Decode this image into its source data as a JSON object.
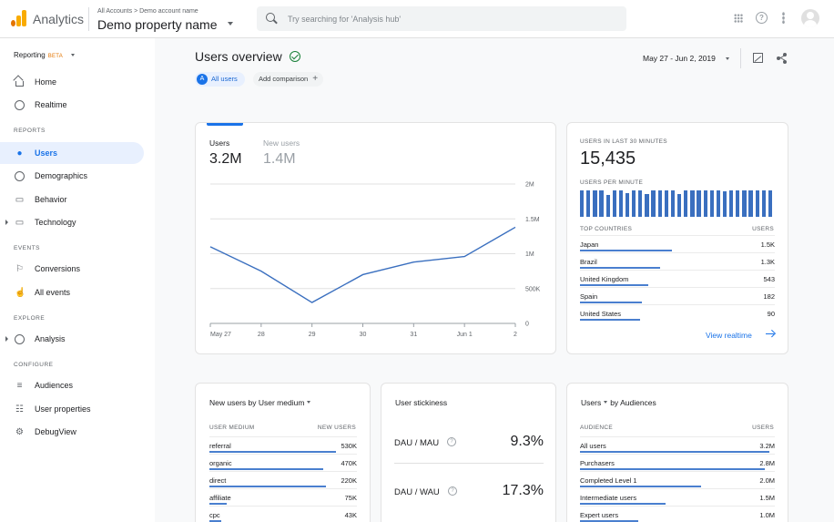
{
  "app": {
    "name": "Analytics",
    "breadcrumb": "All Accounts > Demo account name",
    "property": "Demo property name"
  },
  "search": {
    "placeholder": "Try searching for 'Analysis hub'"
  },
  "sidebar": {
    "reporting": "Reporting",
    "beta": "BETA",
    "sections": {
      "reports": "REPORTS",
      "events": "EVENTS",
      "explore": "EXPLORE",
      "configure": "CONFIGURE"
    },
    "items": {
      "home": "Home",
      "realtime": "Realtime",
      "users": "Users",
      "demographics": "Demographics",
      "behavior": "Behavior",
      "technology": "Technology",
      "conversions": "Conversions",
      "all_events": "All events",
      "analysis": "Analysis",
      "audiences": "Audiences",
      "user_properties": "User properties",
      "debugview": "DebugView"
    }
  },
  "header": {
    "title": "Users overview",
    "chip_avatar": "A",
    "chip_all": "All users",
    "chip_add": "Add comparison",
    "date_range": "May 27 - Jun 2, 2019"
  },
  "main_card": {
    "tab1_label": "Users",
    "tab1_value": "3.2M",
    "tab2_label": "New users",
    "tab2_value": "1.4M"
  },
  "chart_data": {
    "type": "line",
    "categories": [
      "May 27",
      "28",
      "29",
      "30",
      "31",
      "Jun 1",
      "2"
    ],
    "series": [
      {
        "values": [
          1100000,
          750000,
          300000,
          700000,
          880000,
          960000,
          1380000
        ]
      }
    ],
    "y_ticks": [
      "0",
      "500K",
      "1M",
      "1.5M",
      "2M"
    ],
    "ylim": [
      0,
      2000000
    ],
    "color": "#3a6fbf",
    "grid": true
  },
  "realtime": {
    "heading": "USERS IN LAST 30 MINUTES",
    "value": "15,435",
    "per_minute": "USERS PER MINUTE",
    "bars": [
      27,
      27,
      27,
      27,
      22,
      27,
      27,
      24,
      27,
      27,
      23,
      27,
      27,
      27,
      27,
      23,
      27,
      27,
      27,
      27,
      27,
      27,
      26,
      27,
      27,
      27,
      27,
      27,
      27,
      27
    ],
    "col_country": "TOP COUNTRIES",
    "col_users": "USERS",
    "rows": [
      {
        "name": "Japan",
        "value": "1.5K",
        "frac": 0.47
      },
      {
        "name": "Brazil",
        "value": "1.3K",
        "frac": 0.41
      },
      {
        "name": "United Kingdom",
        "value": "543",
        "frac": 0.35
      },
      {
        "name": "Spain",
        "value": "182",
        "frac": 0.32
      },
      {
        "name": "United States",
        "value": "90",
        "frac": 0.31
      }
    ],
    "view_link": "View realtime"
  },
  "medium_card": {
    "title_a": "New users",
    "title_b": "by User medium",
    "col_a": "USER MEDIUM",
    "col_b": "NEW USERS",
    "rows": [
      {
        "name": "referral",
        "value": "530K",
        "frac": 0.86
      },
      {
        "name": "organic",
        "value": "470K",
        "frac": 0.77
      },
      {
        "name": "direct",
        "value": "220K",
        "frac": 0.79
      },
      {
        "name": "affiliate",
        "value": "75K",
        "frac": 0.12
      },
      {
        "name": "cpc",
        "value": "43K",
        "frac": 0.08
      }
    ]
  },
  "stickiness": {
    "title": "User stickiness",
    "rows": [
      {
        "label": "DAU / MAU",
        "value": "9.3%"
      },
      {
        "label": "DAU / WAU",
        "value": "17.3%"
      }
    ]
  },
  "audiences_card": {
    "title_a": "Users",
    "title_b": "by Audiences",
    "col_a": "AUDIENCE",
    "col_b": "USERS",
    "rows": [
      {
        "name": "All users",
        "value": "3.2M",
        "frac": 0.97
      },
      {
        "name": "Purchasers",
        "value": "2.8M",
        "frac": 0.95
      },
      {
        "name": "Completed Level 1",
        "value": "2.0M",
        "frac": 0.62
      },
      {
        "name": "Intermediate users",
        "value": "1.5M",
        "frac": 0.44
      },
      {
        "name": "Expert users",
        "value": "1.0M",
        "frac": 0.3
      }
    ]
  }
}
